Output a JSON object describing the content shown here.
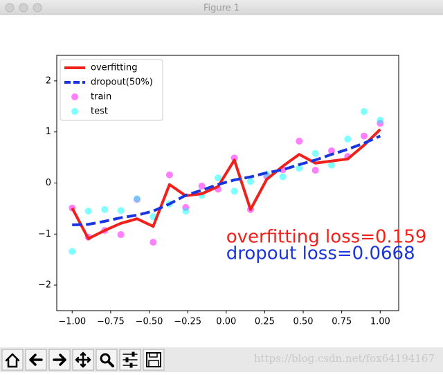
{
  "window": {
    "title": "Figure 1"
  },
  "watermark": "https://blog.csdn.net/fox64194167",
  "chart_data": {
    "type": "line",
    "x": [
      -1,
      -0.895,
      -0.789,
      -0.684,
      -0.579,
      -0.474,
      -0.368,
      -0.263,
      -0.158,
      -0.053,
      0.053,
      0.158,
      0.263,
      0.368,
      0.474,
      0.579,
      0.684,
      0.789,
      0.895,
      1
    ],
    "series": [
      {
        "name": "overfitting",
        "color": "#f0201a",
        "mark": "line",
        "values": [
          -0.49,
          -1.09,
          -0.93,
          -0.79,
          -0.7,
          -0.85,
          -0.03,
          -0.25,
          -0.21,
          -0.07,
          0.45,
          -0.52,
          0.07,
          0.33,
          0.56,
          0.39,
          0.43,
          0.47,
          0.74,
          1.05
        ]
      },
      {
        "name": "dropout(50%)",
        "color": "#1a35e0",
        "mark": "dashed",
        "values": [
          -0.82,
          -0.81,
          -0.75,
          -0.68,
          -0.63,
          -0.55,
          -0.41,
          -0.24,
          -0.14,
          -0.03,
          0.06,
          0.12,
          0.2,
          0.26,
          0.36,
          0.45,
          0.56,
          0.66,
          0.78,
          0.92
        ]
      },
      {
        "name": "train",
        "color": "#ff00ff",
        "mark": "scatter",
        "values": [
          -0.49,
          -1.06,
          -0.93,
          -1.01,
          -0.32,
          -1.16,
          0.16,
          -0.48,
          -0.06,
          -0.12,
          0.49,
          -0.52,
          0.13,
          0.26,
          0.82,
          0.25,
          0.63,
          0.52,
          0.92,
          1.17
        ]
      },
      {
        "name": "test",
        "color": "#00ffff",
        "mark": "scatter",
        "values": [
          -1.34,
          -0.55,
          -0.52,
          -0.54,
          -0.31,
          -0.66,
          -0.41,
          -0.55,
          -0.24,
          0.1,
          -0.16,
          0.03,
          0.17,
          0.12,
          0.29,
          0.58,
          0.35,
          0.86,
          1.4,
          1.23
        ]
      }
    ],
    "annotations": [
      {
        "text": "overfitting loss=0.159",
        "color": "#f0201a"
      },
      {
        "text": "dropout loss=0.0668",
        "color": "#1a35e0"
      }
    ],
    "xlim": [
      -1.1,
      1.12
    ],
    "ylim": [
      -2.5,
      2.5
    ],
    "xticks": [
      {
        "value": -1,
        "label": "−1.00"
      },
      {
        "value": -0.75,
        "label": "−0.75"
      },
      {
        "value": -0.5,
        "label": "−0.50"
      },
      {
        "value": -0.25,
        "label": "−0.25"
      },
      {
        "value": 0,
        "label": "0.00"
      },
      {
        "value": 0.25,
        "label": "0.25"
      },
      {
        "value": 0.5,
        "label": "0.50"
      },
      {
        "value": 0.75,
        "label": "0.75"
      },
      {
        "value": 1,
        "label": "1.00"
      }
    ],
    "yticks": [
      {
        "value": -2,
        "label": "−2"
      },
      {
        "value": -1,
        "label": "−1"
      },
      0,
      1,
      2
    ],
    "legend": "upper left"
  }
}
